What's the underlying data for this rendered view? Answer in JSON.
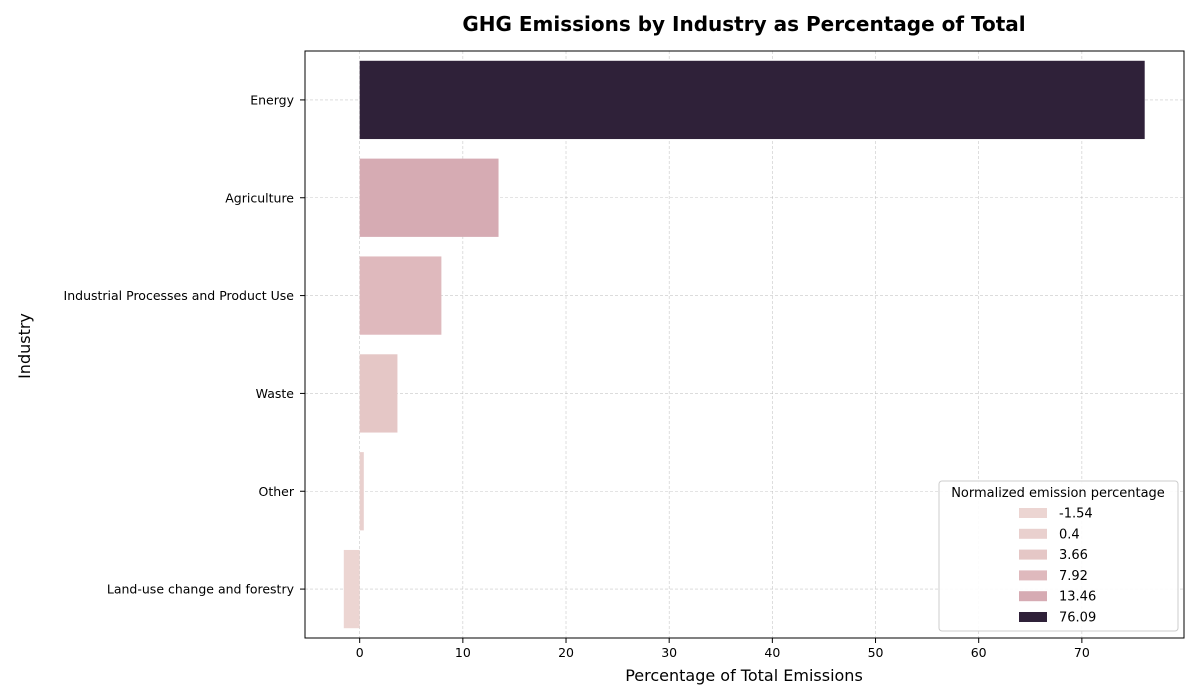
{
  "chart_data": {
    "type": "bar",
    "orientation": "horizontal",
    "title": "GHG Emissions by Industry as Percentage of Total",
    "xlabel": "Percentage of Total Emissions",
    "ylabel": "Industry",
    "categories": [
      "Energy",
      "Agriculture",
      "Industrial Processes and Product Use",
      "Waste",
      "Other",
      "Land-use change and forestry"
    ],
    "values": [
      76.09,
      13.46,
      7.92,
      3.66,
      0.4,
      -1.54
    ],
    "colors": [
      "#2f2139",
      "#d6abb3",
      "#dfb9bd",
      "#e5c7c6",
      "#e9d0ce",
      "#ecd5d2"
    ],
    "xlim": [
      -5.3,
      79.9
    ],
    "xticks": [
      0,
      10,
      20,
      30,
      40,
      50,
      60,
      70
    ],
    "grid": true,
    "legend": {
      "title": "Normalized emission percentage",
      "placement": "lower-right",
      "entries": [
        {
          "label": "-1.54",
          "color": "#ecd5d2"
        },
        {
          "label": "0.4",
          "color": "#e9d0ce"
        },
        {
          "label": "3.66",
          "color": "#e5c7c6"
        },
        {
          "label": "7.92",
          "color": "#dfb9bd"
        },
        {
          "label": "13.46",
          "color": "#d6abb3"
        },
        {
          "label": "76.09",
          "color": "#2f2139"
        }
      ]
    }
  }
}
